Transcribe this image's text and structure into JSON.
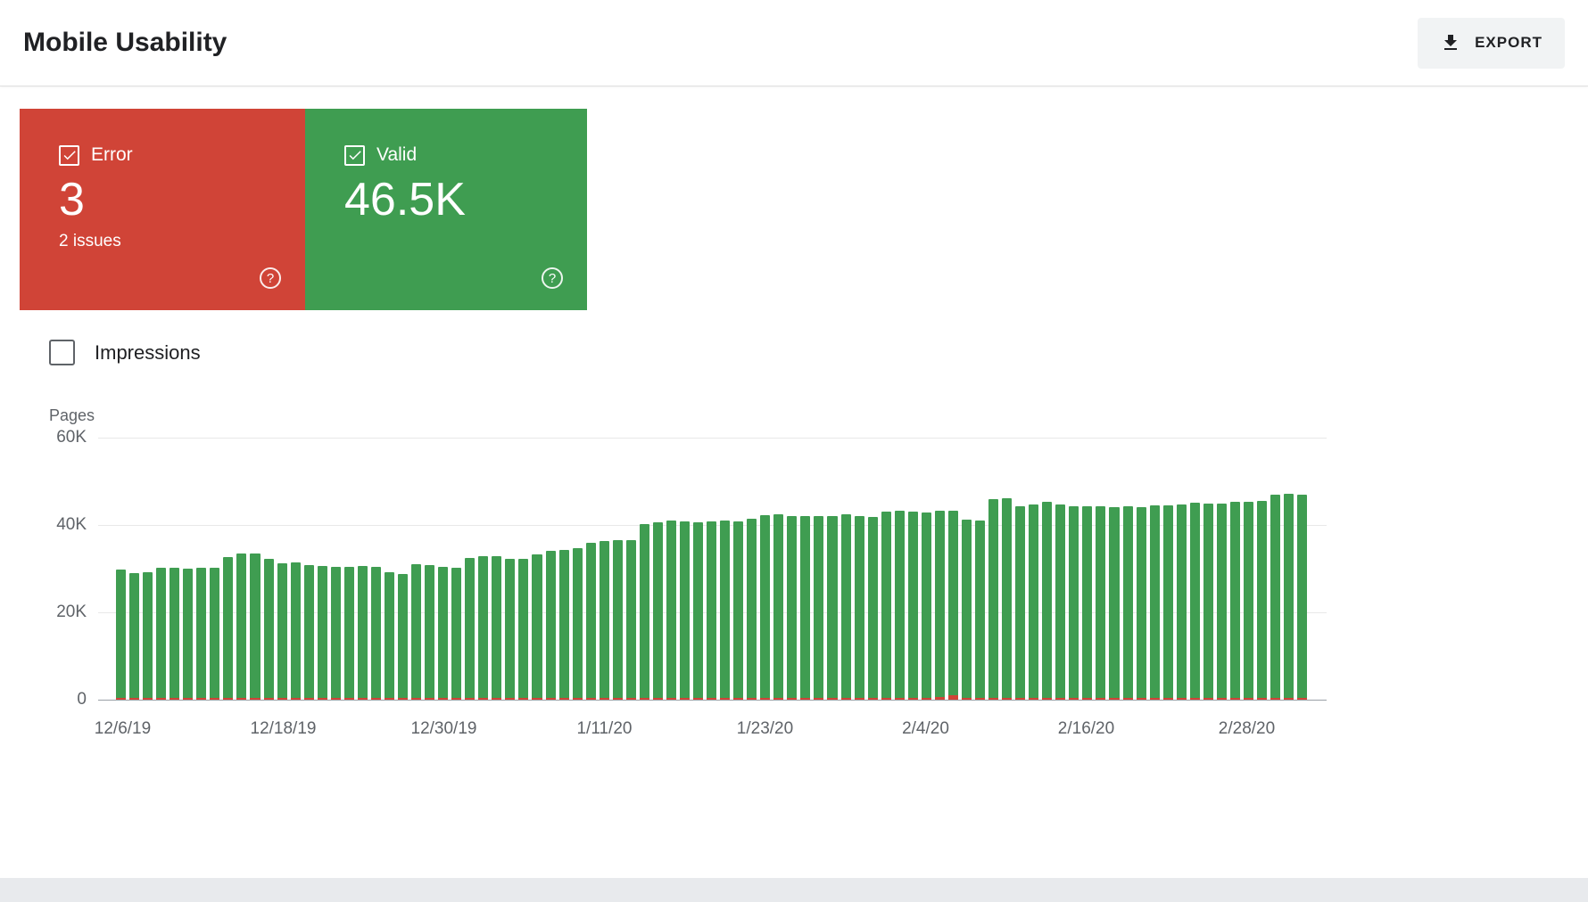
{
  "header": {
    "title": "Mobile Usability",
    "export_label": "EXPORT"
  },
  "cards": {
    "error": {
      "label": "Error",
      "value": "3",
      "sub": "2 issues",
      "help": "?",
      "color": "#d04437",
      "checked": true
    },
    "valid": {
      "label": "Valid",
      "value": "46.5K",
      "help": "?",
      "color": "#3f9d51",
      "checked": true
    }
  },
  "filters": {
    "impressions_label": "Impressions",
    "impressions_checked": false
  },
  "chart_data": {
    "type": "bar",
    "title": "Mobile usability pages over time",
    "xlabel": "",
    "ylabel": "Pages",
    "ylim": [
      0,
      60000
    ],
    "grid": true,
    "legend": "none",
    "y_tick_labels": [
      "60K",
      "40K",
      "20K",
      "0"
    ],
    "x_tick_labels": [
      "12/6/19",
      "12/18/19",
      "12/30/19",
      "1/11/20",
      "1/23/20",
      "2/4/20",
      "2/16/20",
      "2/28/20"
    ],
    "x_tick_every": 12,
    "series": [
      {
        "name": "Valid",
        "color": "#3f9d51",
        "values": [
          29400,
          28600,
          28800,
          29900,
          29700,
          29600,
          29800,
          29700,
          32300,
          33000,
          33100,
          31900,
          30900,
          31000,
          30400,
          30200,
          30100,
          30100,
          30200,
          30100,
          28700,
          28300,
          30600,
          30500,
          30000,
          29900,
          32100,
          32400,
          32400,
          31900,
          31800,
          32800,
          33600,
          33900,
          34200,
          35500,
          36000,
          36200,
          36100,
          39700,
          40300,
          40700,
          40500,
          40300,
          40500,
          40700,
          40400,
          41000,
          41800,
          42000,
          41700,
          41600,
          41600,
          41700,
          42100,
          41600,
          41400,
          42600,
          42900,
          42600,
          42400,
          42500,
          42300,
          40800,
          40700,
          45500,
          45700,
          43900,
          44300,
          44900,
          44200,
          43800,
          43900,
          43800,
          43700,
          43800,
          43700,
          44000,
          44100,
          44300,
          44700,
          44500,
          44400,
          44900,
          45000,
          45200,
          46600,
          46700,
          46500
        ]
      },
      {
        "name": "Error",
        "color": "#d04437",
        "values": [
          300,
          300,
          300,
          300,
          300,
          300,
          300,
          300,
          300,
          300,
          300,
          300,
          300,
          300,
          300,
          300,
          300,
          300,
          300,
          300,
          300,
          300,
          300,
          300,
          300,
          300,
          300,
          300,
          300,
          300,
          300,
          300,
          300,
          300,
          300,
          300,
          300,
          300,
          300,
          300,
          300,
          300,
          300,
          300,
          300,
          300,
          300,
          300,
          300,
          300,
          300,
          300,
          300,
          300,
          300,
          300,
          300,
          300,
          300,
          300,
          300,
          700,
          1000,
          300,
          300,
          300,
          300,
          300,
          300,
          300,
          300,
          300,
          300,
          300,
          300,
          300,
          300,
          300,
          300,
          300,
          300,
          300,
          300,
          300,
          300,
          300,
          3,
          3,
          3
        ]
      }
    ]
  }
}
